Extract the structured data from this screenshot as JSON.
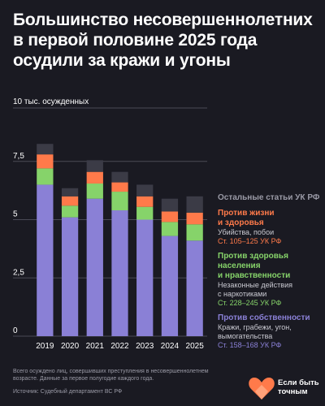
{
  "title_lines": [
    "Большинство несовершеннолетних",
    "в первой половине 2025 года",
    "осудили за кражи и угоны"
  ],
  "colors": {
    "background": "#1a1a22",
    "property": "#8a80d6",
    "health": "#86d36a",
    "life": "#ff7a4a",
    "other": "#3b3b46"
  },
  "chart_data": {
    "type": "bar",
    "stacked": true,
    "unit_label": "10 тыс. осужденных",
    "categories": [
      "2019",
      "2020",
      "2021",
      "2022",
      "2023",
      "2024",
      "2025"
    ],
    "yticks": [
      {
        "value": 0,
        "label": "0"
      },
      {
        "value": 2.5,
        "label": "2,5"
      },
      {
        "value": 5,
        "label": "5"
      },
      {
        "value": 7.5,
        "label": "7,5"
      }
    ],
    "ylim": [
      0,
      10
    ],
    "series": [
      {
        "key": "property",
        "name": "Против собственности",
        "color": "#8a80d6",
        "values": [
          6.5,
          5.1,
          5.9,
          5.4,
          5.0,
          4.3,
          4.1
        ]
      },
      {
        "key": "health",
        "name": "Против здоровья населения и нравственности",
        "color": "#86d36a",
        "values": [
          0.7,
          0.5,
          0.65,
          0.8,
          0.55,
          0.6,
          0.7
        ]
      },
      {
        "key": "life",
        "name": "Против жизни и здоровья",
        "color": "#ff7a4a",
        "values": [
          0.6,
          0.4,
          0.5,
          0.4,
          0.45,
          0.45,
          0.5
        ]
      },
      {
        "key": "other",
        "name": "Остальные статьи УК РФ",
        "color": "#3b3b46",
        "values": [
          0.45,
          0.35,
          0.5,
          0.45,
          0.5,
          0.55,
          0.7
        ]
      }
    ]
  },
  "legend": {
    "other": {
      "head": "Остальные статьи УК РФ"
    },
    "life": {
      "head": [
        "Против жизни",
        "и здоровья"
      ],
      "body": [
        "Убийства, побои"
      ],
      "articles": "Ст. 105–125 УК РФ"
    },
    "health": {
      "head": [
        "Против здоровья",
        "населения",
        "и нравственности"
      ],
      "body": [
        "Незаконные действия",
        "с наркотиками"
      ],
      "articles": "Ст. 228–245 УК РФ"
    },
    "property": {
      "head": [
        "Против собственности"
      ],
      "body": [
        "Кражи, грабежи, угон,",
        "вымогательства"
      ],
      "articles": "Ст. 158–168 УК РФ"
    }
  },
  "footnote_lines": [
    "Всего осуждено лиц, совершивших преступления в несовершеннолетнем",
    "возрасте. Данные за первое полугодие каждого года."
  ],
  "source": "Источник: Судебный департамент ВС РФ",
  "brand": {
    "lines": [
      "Если быть",
      "точным"
    ],
    "icon": "heart-logo-icon"
  }
}
